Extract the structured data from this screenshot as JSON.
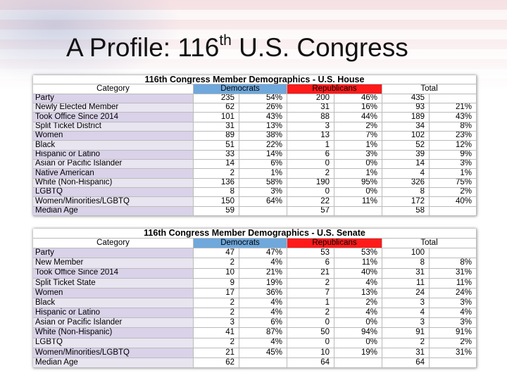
{
  "title": {
    "main": "A Profile: 116",
    "sup": "th",
    "rest": "U.S. Congress"
  },
  "tables": [
    {
      "heading": "116th Congress Member Demographics - U.S. House",
      "columns": [
        "Category",
        "Democrats",
        "Republicans",
        "Total"
      ],
      "rows": [
        {
          "category": "Party",
          "dem": 235,
          "dem_pct": "54%",
          "rep": 200,
          "rep_pct": "46%",
          "total": 435
        },
        {
          "category": "Newly Elected Member",
          "dem": 62,
          "dem_pct": "26%",
          "rep": 31,
          "rep_pct": "16%",
          "total": 93,
          "total_pct": "21%"
        },
        {
          "category": "Took Office Since 2014",
          "dem": 101,
          "dem_pct": "43%",
          "rep": 88,
          "rep_pct": "44%",
          "total": 189,
          "total_pct": "43%"
        },
        {
          "category": "Split Ticket District",
          "dem": 31,
          "dem_pct": "13%",
          "rep": 3,
          "rep_pct": "2%",
          "total": 34,
          "total_pct": "8%"
        },
        {
          "category": "Women",
          "dem": 89,
          "dem_pct": "38%",
          "rep": 13,
          "rep_pct": "7%",
          "total": 102,
          "total_pct": "23%"
        },
        {
          "category": "Black",
          "dem": 51,
          "dem_pct": "22%",
          "rep": 1,
          "rep_pct": "1%",
          "total": 52,
          "total_pct": "12%"
        },
        {
          "category": "Hispanic or Latino",
          "dem": 33,
          "dem_pct": "14%",
          "rep": 6,
          "rep_pct": "3%",
          "total": 39,
          "total_pct": "9%"
        },
        {
          "category": "Asian or Pacific Islander",
          "dem": 14,
          "dem_pct": "6%",
          "rep": 0,
          "rep_pct": "0%",
          "total": 14,
          "total_pct": "3%"
        },
        {
          "category": "Native American",
          "dem": 2,
          "dem_pct": "1%",
          "rep": 2,
          "rep_pct": "1%",
          "total": 4,
          "total_pct": "1%"
        },
        {
          "category": "White (Non-Hispanic)",
          "dem": 136,
          "dem_pct": "58%",
          "rep": 190,
          "rep_pct": "95%",
          "total": 326,
          "total_pct": "75%"
        },
        {
          "category": "LGBTQ",
          "dem": 8,
          "dem_pct": "3%",
          "rep": 0,
          "rep_pct": "0%",
          "total": 8,
          "total_pct": "2%"
        },
        {
          "category": "Women/Minorities/LGBTQ",
          "dem": 150,
          "dem_pct": "64%",
          "rep": 22,
          "rep_pct": "11%",
          "total": 172,
          "total_pct": "40%"
        },
        {
          "category": "Median Age",
          "dem": 59,
          "rep": 57,
          "total": 58
        }
      ]
    },
    {
      "heading": "116th Congress Member Demographics - U.S. Senate",
      "columns": [
        "Category",
        "Democrats",
        "Republicans",
        "Total"
      ],
      "rows": [
        {
          "category": "Party",
          "dem": 47,
          "dem_pct": "47%",
          "rep": 53,
          "rep_pct": "53%",
          "total": 100
        },
        {
          "category": "New Member",
          "dem": 2,
          "dem_pct": "4%",
          "rep": 6,
          "rep_pct": "11%",
          "total": 8,
          "total_pct": "8%"
        },
        {
          "category": "Took Office Since 2014",
          "dem": 10,
          "dem_pct": "21%",
          "rep": 21,
          "rep_pct": "40%",
          "total": 31,
          "total_pct": "31%"
        },
        {
          "category": "Split Ticket State",
          "dem": 9,
          "dem_pct": "19%",
          "rep": 2,
          "rep_pct": "4%",
          "total": 11,
          "total_pct": "11%"
        },
        {
          "category": "Women",
          "dem": 17,
          "dem_pct": "36%",
          "rep": 7,
          "rep_pct": "13%",
          "total": 24,
          "total_pct": "24%"
        },
        {
          "category": "Black",
          "dem": 2,
          "dem_pct": "4%",
          "rep": 1,
          "rep_pct": "2%",
          "total": 3,
          "total_pct": "3%"
        },
        {
          "category": "Hispanic or Latino",
          "dem": 2,
          "dem_pct": "4%",
          "rep": 2,
          "rep_pct": "4%",
          "total": 4,
          "total_pct": "4%"
        },
        {
          "category": "Asian or Pacific Islander",
          "dem": 3,
          "dem_pct": "6%",
          "rep": 0,
          "rep_pct": "0%",
          "total": 3,
          "total_pct": "3%"
        },
        {
          "category": "White (Non-Hispanic)",
          "dem": 41,
          "dem_pct": "87%",
          "rep": 50,
          "rep_pct": "94%",
          "total": 91,
          "total_pct": "91%"
        },
        {
          "category": "LGBTQ",
          "dem": 2,
          "dem_pct": "4%",
          "rep": 0,
          "rep_pct": "0%",
          "total": 2,
          "total_pct": "2%"
        },
        {
          "category": "Women/Minorities/LGBTQ",
          "dem": 21,
          "dem_pct": "45%",
          "rep": 10,
          "rep_pct": "19%",
          "total": 31,
          "total_pct": "31%"
        },
        {
          "category": "Median Age",
          "dem": 62,
          "rep": 64,
          "total": 64
        }
      ]
    }
  ]
}
